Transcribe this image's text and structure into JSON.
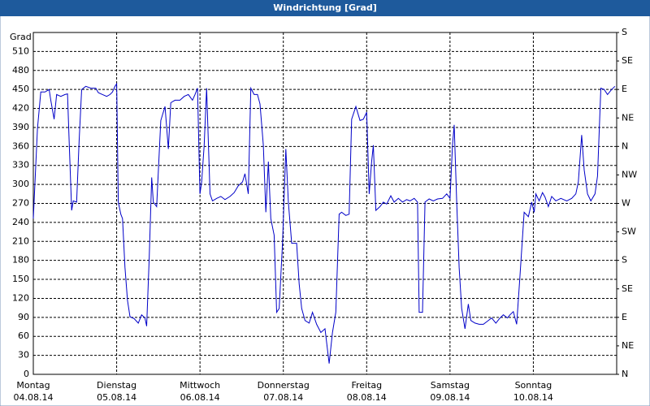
{
  "chart_data": {
    "type": "line",
    "title": "Windrichtung [Grad]",
    "y_label": "Grad",
    "xlim": [
      0,
      7
    ],
    "xticks": [
      {
        "value": 0,
        "label": "Montag"
      },
      {
        "value": 1,
        "label": "Dienstag"
      },
      {
        "value": 2,
        "label": "Mittwoch"
      },
      {
        "value": 3,
        "label": "Donnerstag"
      },
      {
        "value": 4,
        "label": "Freitag"
      },
      {
        "value": 5,
        "label": "Samstag"
      },
      {
        "value": 6,
        "label": "Sonntag"
      }
    ],
    "xtick_dates": [
      "04.08.14",
      "05.08.14",
      "06.08.14",
      "07.08.14",
      "08.08.14",
      "09.08.14",
      "10.08.14"
    ],
    "ylim": [
      0,
      540
    ],
    "yticks": [
      0,
      30,
      60,
      90,
      120,
      150,
      180,
      210,
      240,
      270,
      300,
      330,
      360,
      390,
      420,
      450,
      480,
      510
    ],
    "y2lim": [
      0,
      540
    ],
    "y2ticks": [
      {
        "value": 0,
        "label": "N"
      },
      {
        "value": 45,
        "label": "NE"
      },
      {
        "value": 90,
        "label": "E"
      },
      {
        "value": 135,
        "label": "SE"
      },
      {
        "value": 180,
        "label": "S"
      },
      {
        "value": 225,
        "label": "SW"
      },
      {
        "value": 270,
        "label": "W"
      },
      {
        "value": 315,
        "label": "NW"
      },
      {
        "value": 360,
        "label": "N"
      },
      {
        "value": 405,
        "label": "NE"
      },
      {
        "value": 450,
        "label": "E"
      },
      {
        "value": 495,
        "label": "SE"
      },
      {
        "value": 540,
        "label": "S"
      }
    ],
    "grid": true,
    "series": [
      {
        "color": "#0000c8",
        "x": [
          0,
          0.05,
          0.09,
          0.14,
          0.19,
          0.21,
          0.25,
          0.28,
          0.33,
          0.38,
          0.41,
          0.43,
          0.46,
          0.48,
          0.52,
          0.55,
          0.58,
          0.63,
          0.69,
          0.75,
          0.78,
          0.83,
          0.88,
          0.92,
          0.95,
          0.98,
          1.0,
          1.02,
          1.05,
          1.07,
          1.1,
          1.13,
          1.16,
          1.21,
          1.26,
          1.3,
          1.34,
          1.36,
          1.39,
          1.42,
          1.44,
          1.48,
          1.53,
          1.58,
          1.62,
          1.65,
          1.7,
          1.76,
          1.81,
          1.86,
          1.91,
          1.94,
          1.97,
          2.0,
          2.02,
          2.05,
          2.08,
          2.12,
          2.15,
          2.2,
          2.25,
          2.3,
          2.36,
          2.41,
          2.46,
          2.51,
          2.54,
          2.58,
          2.61,
          2.65,
          2.69,
          2.72,
          2.76,
          2.79,
          2.82,
          2.85,
          2.89,
          2.92,
          2.95,
          2.99,
          3.03,
          3.06,
          3.1,
          3.16,
          3.19,
          3.22,
          3.26,
          3.31,
          3.35,
          3.4,
          3.45,
          3.5,
          3.55,
          3.59,
          3.63,
          3.67,
          3.7,
          3.75,
          3.79,
          3.82,
          3.87,
          3.92,
          3.96,
          4.0,
          4.03,
          4.06,
          4.08,
          4.11,
          4.16,
          4.2,
          4.24,
          4.29,
          4.33,
          4.38,
          4.43,
          4.48,
          4.52,
          4.57,
          4.61,
          4.63,
          4.67,
          4.7,
          4.75,
          4.8,
          4.85,
          4.91,
          4.96,
          5.0,
          5.03,
          5.05,
          5.08,
          5.11,
          5.14,
          5.18,
          5.22,
          5.25,
          5.3,
          5.35,
          5.4,
          5.45,
          5.5,
          5.55,
          5.6,
          5.64,
          5.69,
          5.72,
          5.76,
          5.8,
          5.84,
          5.89,
          5.94,
          5.98,
          6.01,
          6.03,
          6.07,
          6.11,
          6.14,
          6.18,
          6.22,
          6.27,
          6.33,
          6.4,
          6.46,
          6.51,
          6.54,
          6.58,
          6.61,
          6.65,
          6.69,
          6.74,
          6.77,
          6.81,
          6.85,
          6.89,
          6.94,
          6.98
        ],
        "values": [
          246,
          388,
          446,
          446,
          450,
          433,
          403,
          442,
          439,
          442,
          443,
          369,
          259,
          274,
          272,
          369,
          450,
          455,
          452,
          452,
          445,
          442,
          439,
          442,
          446,
          455,
          459,
          272,
          253,
          246,
          169,
          117,
          91,
          88,
          81,
          94,
          89,
          76,
          182,
          311,
          272,
          265,
          401,
          423,
          356,
          429,
          433,
          433,
          439,
          442,
          433,
          442,
          452,
          285,
          304,
          362,
          452,
          285,
          274,
          278,
          281,
          276,
          281,
          287,
          298,
          304,
          317,
          285,
          452,
          442,
          442,
          427,
          362,
          256,
          336,
          246,
          220,
          98,
          104,
          207,
          356,
          272,
          207,
          207,
          143,
          104,
          85,
          81,
          98,
          79,
          66,
          72,
          17,
          66,
          98,
          253,
          256,
          251,
          253,
          403,
          423,
          401,
          403,
          414,
          285,
          336,
          362,
          259,
          265,
          272,
          269,
          282,
          272,
          278,
          272,
          276,
          274,
          278,
          272,
          98,
          98,
          272,
          277,
          274,
          277,
          278,
          285,
          278,
          362,
          394,
          272,
          169,
          104,
          72,
          111,
          85,
          81,
          79,
          79,
          84,
          89,
          81,
          89,
          94,
          89,
          94,
          99,
          79,
          156,
          256,
          249,
          272,
          256,
          285,
          274,
          287,
          280,
          265,
          281,
          274,
          278,
          274,
          278,
          285,
          304,
          378,
          323,
          285,
          274,
          285,
          313,
          452,
          450,
          442,
          450,
          455
        ]
      }
    ]
  }
}
